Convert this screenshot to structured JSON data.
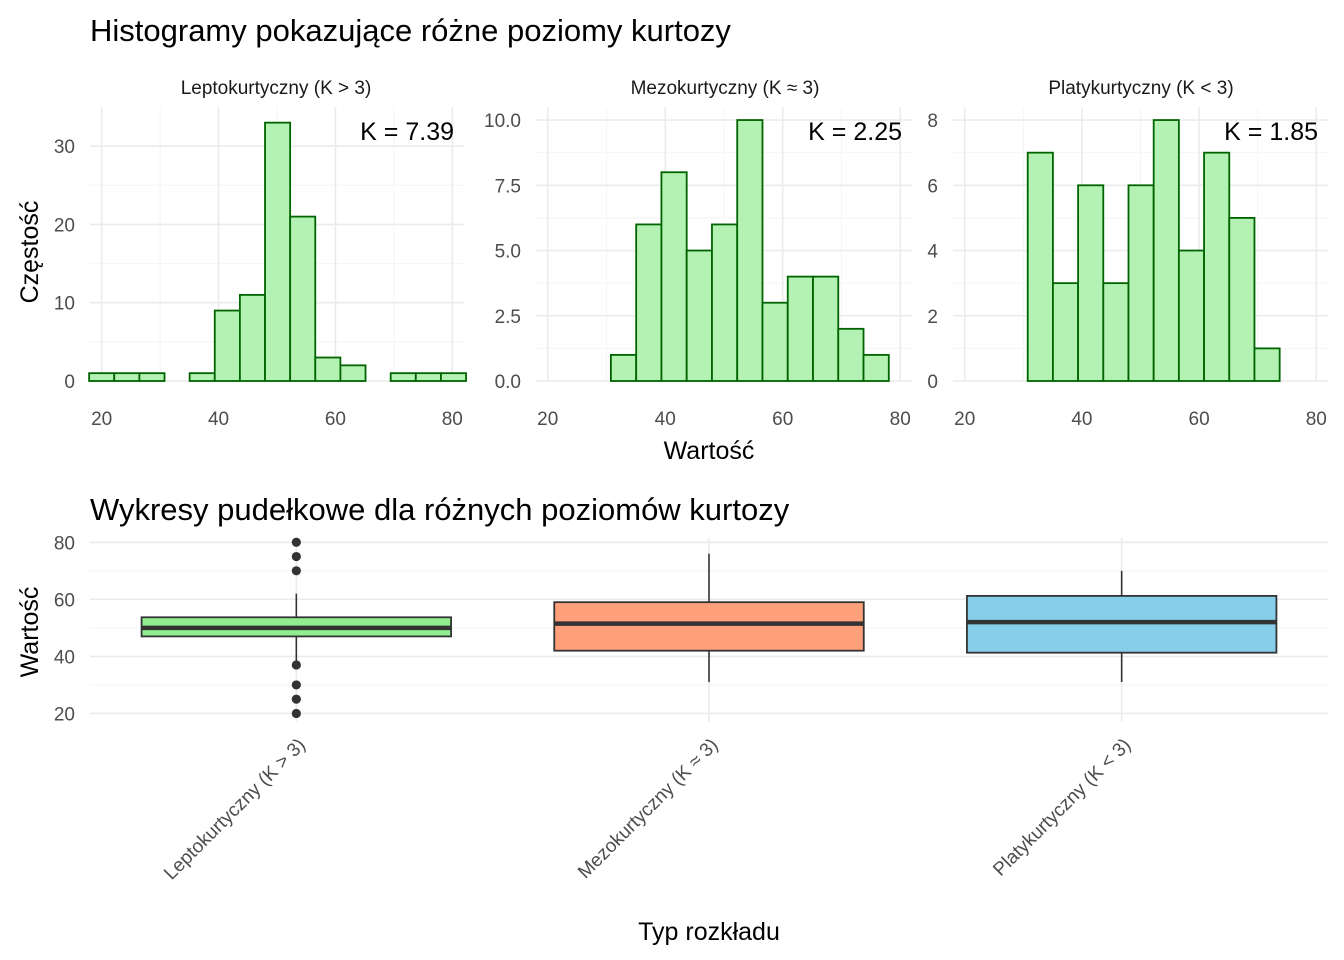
{
  "colors": {
    "hist_fill": "#b3f2b3",
    "hist_outline": "#006400",
    "box_lepto": "#90ee90",
    "box_mezo": "#ffa07a",
    "box_platy": "#87ceeb",
    "box_line": "#333333"
  },
  "chart_data": [
    {
      "type": "bar",
      "title": "Histogramy pokazujące różne poziomy kurtozy",
      "xlabel": "Wartość",
      "ylabel": "Częstość",
      "bin_width": 4.3,
      "xlim": [
        18,
        82
      ],
      "x_ticks": [
        20,
        40,
        60,
        80
      ],
      "panels": [
        {
          "strip": "Leptokurtyczny (K > 3)",
          "annotation": "K = 7.39",
          "ylim": [
            0,
            35
          ],
          "y_ticks": [
            0,
            10,
            20,
            30
          ],
          "y_tick_labels": [
            "0",
            "10",
            "20",
            "30"
          ],
          "bin_centers": [
            20.0,
            24.3,
            28.6,
            32.9,
            37.2,
            41.5,
            45.8,
            50.1,
            54.4,
            58.7,
            63.0,
            67.3,
            71.6,
            75.9,
            80.2
          ],
          "counts": [
            1,
            1,
            1,
            0,
            1,
            9,
            11,
            33,
            21,
            3,
            2,
            0,
            1,
            1,
            1
          ]
        },
        {
          "strip": "Mezokurtyczny (K ≈ 3)",
          "annotation": "K = 2.25",
          "ylim": [
            0,
            10.5
          ],
          "y_ticks": [
            0,
            2.5,
            5,
            7.5,
            10
          ],
          "y_tick_labels": [
            "0.0",
            "2.5",
            "5.0",
            "7.5",
            "10.0"
          ],
          "bin_centers": [
            20.0,
            24.3,
            28.6,
            32.9,
            37.2,
            41.5,
            45.8,
            50.1,
            54.4,
            58.7,
            63.0,
            67.3,
            71.6,
            75.9,
            80.2
          ],
          "counts": [
            0,
            0,
            0,
            1,
            6,
            8,
            5,
            6,
            10,
            3,
            4,
            4,
            2,
            1,
            0
          ]
        },
        {
          "strip": "Platykurtyczny (K < 3)",
          "annotation": "K = 1.85",
          "ylim": [
            0,
            8.4
          ],
          "y_ticks": [
            0,
            2,
            4,
            6,
            8
          ],
          "y_tick_labels": [
            "0",
            "2",
            "4",
            "6",
            "8"
          ],
          "bin_centers": [
            20.0,
            24.3,
            28.6,
            32.9,
            37.2,
            41.5,
            45.8,
            50.1,
            54.4,
            58.7,
            63.0,
            67.3,
            71.6,
            75.9,
            80.2
          ],
          "counts": [
            0,
            0,
            0,
            7,
            3,
            6,
            3,
            6,
            8,
            4,
            7,
            5,
            1,
            0,
            0
          ]
        }
      ]
    },
    {
      "type": "box",
      "title": "Wykresy pudełkowe dla różnych poziomów kurtozy",
      "xlabel": "Typ rozkładu",
      "ylabel": "Wartość",
      "ylim": [
        17,
        81.5
      ],
      "y_ticks": [
        20,
        40,
        60,
        80
      ],
      "categories": [
        "Leptokurtyczny (K > 3)",
        "Mezokurtyczny (K ≈ 3)",
        "Platykurtyczny (K < 3)"
      ],
      "boxes": [
        {
          "q1": 47,
          "median": 50,
          "q3": 53.7,
          "whisker_low": 38,
          "whisker_high": 62,
          "outliers": [
            20,
            25,
            30,
            37,
            70,
            75,
            80
          ]
        },
        {
          "q1": 42,
          "median": 51.5,
          "q3": 59,
          "whisker_low": 31,
          "whisker_high": 76,
          "outliers": []
        },
        {
          "q1": 41.3,
          "median": 52,
          "q3": 61.2,
          "whisker_low": 31,
          "whisker_high": 70,
          "outliers": []
        }
      ]
    }
  ]
}
